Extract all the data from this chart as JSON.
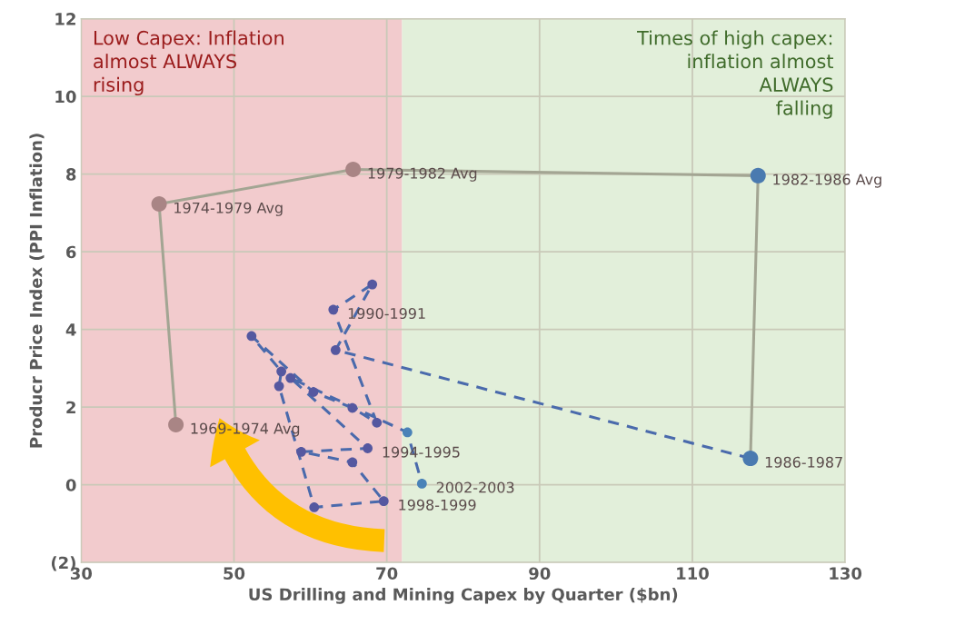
{
  "chart_data": {
    "type": "line",
    "xlabel": "US Drilling and Mining Capex by Quarter ($bn)",
    "ylabel": "Producr Price Index (PPI Inflation)",
    "xlim": [
      30,
      130
    ],
    "xticks": [
      30,
      50,
      70,
      90,
      110,
      130
    ],
    "ylim": [
      -2,
      12
    ],
    "yticks": [
      {
        "value": -2,
        "label": "(2)"
      },
      0,
      2,
      4,
      6,
      8,
      10,
      12
    ],
    "grid": true,
    "bands": [
      {
        "axis": "x",
        "from": 30,
        "to": 72,
        "color": "#f2cbcd",
        "label": "Low Capex: Inflation\nalmost ALWAYS\nrising"
      },
      {
        "axis": "x",
        "from": 72,
        "to": 130,
        "color": "#e2efda",
        "label": "Times of high capex:\ninflation almost\nALWAYS\nfalling"
      }
    ],
    "series": [
      {
        "color": "#a3a593",
        "line_style": "solid",
        "marker": "circle",
        "x": [
          42.4,
          40.2,
          65.6,
          118.6,
          117.6
        ],
        "values": [
          1.55,
          7.23,
          8.12,
          7.96,
          0.68
        ],
        "colors": [
          "#a98585",
          "#a98585",
          "#a98585",
          "#4a7ab0",
          "#4a7ab0"
        ]
      },
      {
        "color": "#4a6aac",
        "line_style": "dashed",
        "marker": "circle",
        "x": [
          117.6,
          63.3,
          68.1,
          63.0,
          68.7,
          65.5,
          60.4,
          52.3,
          56.2,
          55.9,
          60.5,
          69.6,
          65.5,
          58.8,
          67.5,
          57.4,
          72.7,
          74.6
        ],
        "values": [
          0.68,
          3.47,
          5.16,
          4.51,
          1.6,
          1.98,
          2.39,
          3.83,
          2.92,
          2.54,
          -0.58,
          -0.42,
          0.58,
          0.85,
          0.94,
          2.75,
          1.35,
          0.03
        ],
        "colors": [
          "#4a7ab0",
          "#5558a0",
          "#5558a0",
          "#5558a0",
          "#5558a0",
          "#5558a0",
          "#5558a0",
          "#5558a0",
          "#5558a0",
          "#5558a0",
          "#5558a0",
          "#5558a0",
          "#5558a0",
          "#5558a0",
          "#5558a0",
          "#5558a0",
          "#4a82b8",
          "#4a82b8"
        ]
      }
    ],
    "annotations": [
      {
        "text": "1969-1974 Avg",
        "x": 42.4,
        "y": 1.55
      },
      {
        "text": "1974-1979 Avg",
        "x": 40.2,
        "y": 7.23
      },
      {
        "text": "1979-1982 Avg",
        "x": 65.6,
        "y": 8.12
      },
      {
        "text": "1982-1986 Avg",
        "x": 118.6,
        "y": 7.96
      },
      {
        "text": "1986-1987",
        "x": 117.6,
        "y": 0.68
      },
      {
        "text": "1990-1991",
        "x": 63.0,
        "y": 4.51
      },
      {
        "text": "1994-1995",
        "x": 67.5,
        "y": 0.94
      },
      {
        "text": "1998-1999",
        "x": 69.6,
        "y": -0.42
      },
      {
        "text": "2002-2003",
        "x": 74.6,
        "y": 0.03
      }
    ]
  }
}
